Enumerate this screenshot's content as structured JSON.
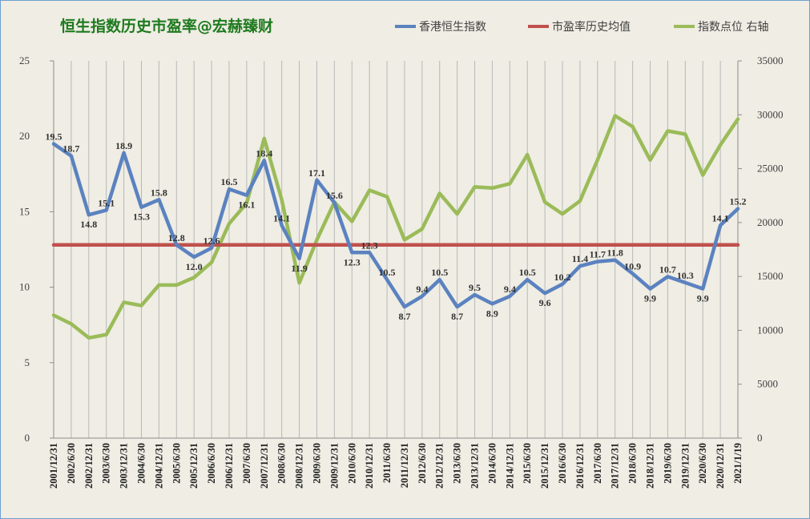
{
  "chart_data": {
    "type": "line",
    "title": "恒生指数历史市盈率@宏赫臻财",
    "legend_position": "top-right",
    "grid": "vertical",
    "categories": [
      "2001/12/31",
      "2002/6/30",
      "2002/12/31",
      "2003/6/30",
      "2003/12/31",
      "2004/6/30",
      "2004/12/31",
      "2005/6/30",
      "2005/12/31",
      "2006/6/30",
      "2006/12/31",
      "2007/6/30",
      "2007/12/31",
      "2008/6/30",
      "2008/12/31",
      "2009/6/30",
      "2009/12/31",
      "2010/6/30",
      "2010/12/31",
      "2011/6/30",
      "2011/12/31",
      "2012/6/30",
      "2012/12/31",
      "2013/6/30",
      "2013/12/31",
      "2014/6/30",
      "2014/12/31",
      "2015/6/30",
      "2015/12/31",
      "2016/6/30",
      "2016/12/31",
      "2017/6/30",
      "2017/12/31",
      "2018/6/30",
      "2018/12/31",
      "2019/6/30",
      "2019/12/31",
      "2020/6/30",
      "2020/12/31",
      "2021/1/19"
    ],
    "y_left": {
      "min": 0,
      "max": 25,
      "ticks": [
        "0",
        "5",
        "10",
        "15",
        "20",
        "25"
      ]
    },
    "y_right": {
      "min": 0,
      "max": 35000,
      "ticks": [
        "0",
        "5000",
        "10000",
        "15000",
        "20000",
        "25000",
        "30000",
        "35000"
      ]
    },
    "series": [
      {
        "name": "香港恒生指数",
        "axis": "left",
        "color": "#5b82c0",
        "values": [
          19.5,
          18.7,
          14.8,
          15.1,
          18.9,
          15.3,
          15.8,
          12.8,
          12.0,
          12.6,
          16.5,
          16.1,
          18.4,
          14.1,
          11.9,
          17.1,
          15.6,
          12.3,
          12.3,
          10.5,
          8.7,
          9.4,
          10.5,
          8.7,
          9.5,
          8.9,
          9.4,
          10.5,
          9.6,
          10.2,
          11.4,
          11.7,
          11.8,
          10.9,
          9.9,
          10.7,
          10.3,
          9.9,
          14.1,
          15.2
        ],
        "labels": [
          "19.5",
          "18.7",
          "14.8",
          "15.1",
          "18.9",
          "15.3",
          "15.8",
          "12.8",
          "12.0",
          "12.6",
          "16.5",
          "16.1",
          "18.4",
          "14.1",
          "11.9",
          "17.1",
          "15.6",
          "12.3",
          "12.3",
          "10.5",
          "8.7",
          "9.4",
          "10.5",
          "8.7",
          "9.5",
          "8.9",
          "9.4",
          "10.5",
          "9.6",
          "10.2",
          "11.4",
          "11.7",
          "11.8",
          "10.9",
          "9.9",
          "10.7",
          "10.3",
          "9.9",
          "14.1",
          "15.2"
        ]
      },
      {
        "name": "市盈率历史均值",
        "axis": "left",
        "color": "#c0504d",
        "values": [
          12.8,
          12.8,
          12.8,
          12.8,
          12.8,
          12.8,
          12.8,
          12.8,
          12.8,
          12.8,
          12.8,
          12.8,
          12.8,
          12.8,
          12.8,
          12.8,
          12.8,
          12.8,
          12.8,
          12.8,
          12.8,
          12.8,
          12.8,
          12.8,
          12.8,
          12.8,
          12.8,
          12.8,
          12.8,
          12.8,
          12.8,
          12.8,
          12.8,
          12.8,
          12.8,
          12.8,
          12.8,
          12.8,
          12.8,
          12.8
        ]
      },
      {
        "name": "指数点位 右轴",
        "axis": "right",
        "color": "#9bbb59",
        "values": [
          11400,
          10600,
          9300,
          9600,
          12600,
          12300,
          14200,
          14200,
          14900,
          16300,
          19900,
          21800,
          27800,
          22100,
          14400,
          18400,
          21900,
          20100,
          23000,
          22400,
          18400,
          19400,
          22700,
          20800,
          23300,
          23200,
          23600,
          26300,
          21900,
          20800,
          22000,
          25800,
          29900,
          28900,
          25800,
          28500,
          28200,
          24400,
          27200,
          29600
        ]
      }
    ]
  }
}
